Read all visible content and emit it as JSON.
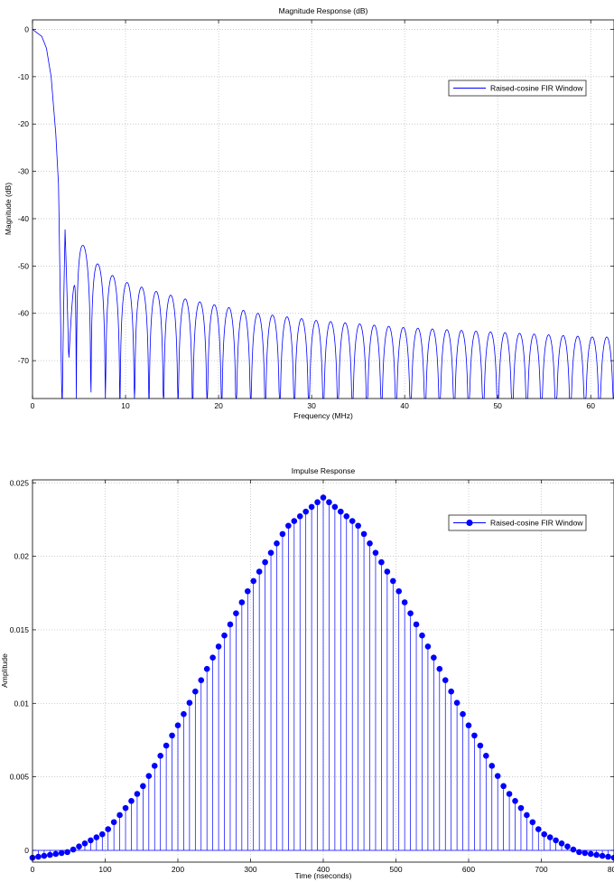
{
  "colors": {
    "series": "#0000ff",
    "background": "#ffffff",
    "grid": "#b8b8b8"
  },
  "chart_data": [
    {
      "type": "line",
      "title": "Magnitude Response (dB)",
      "xlabel": "Frequency (MHz)",
      "ylabel": "Magnitude (dB)",
      "xlim": [
        0,
        62.5
      ],
      "ylim": [
        -78,
        2
      ],
      "xticks": [
        0,
        10,
        20,
        30,
        40,
        50,
        60
      ],
      "yticks": [
        0,
        -10,
        -20,
        -30,
        -40,
        -50,
        -60,
        -70
      ],
      "grid": true,
      "legend": "top-right",
      "series": [
        {
          "name": "Raised-cosine FIR Window",
          "x": [
            0,
            1,
            1.5,
            2,
            2.5,
            2.8,
            3.1,
            3.5,
            3.9,
            4.6,
            5.4,
            6.2,
            7.0,
            7.8,
            8.6,
            10.2,
            12.6,
            16.5,
            20.4,
            24.3,
            30.5,
            40.0,
            50.1,
            60.2,
            62.5
          ],
          "y": [
            0,
            -1.5,
            -4,
            -10,
            -22,
            -33,
            -70,
            -38.5,
            -70,
            -42.5,
            -45.5,
            -47.5,
            -49.5,
            -51,
            -52,
            -53.5,
            -55,
            -57,
            -58.5,
            -60,
            -61.5,
            -63,
            -64,
            -65,
            -65
          ]
        }
      ]
    },
    {
      "type": "scatter",
      "title": "Impulse Response",
      "xlabel": "Time (nseconds)",
      "ylabel": "Amplitude",
      "xlim": [
        0,
        800
      ],
      "ylim": [
        -0.0008,
        0.0252
      ],
      "xticks": [
        0,
        100,
        200,
        300,
        400,
        500,
        600,
        700,
        800
      ],
      "yticks": [
        0,
        0.005,
        0.01,
        0.015,
        0.02,
        0.025
      ],
      "grid": true,
      "legend": "top-right",
      "series": [
        {
          "name": "Raised-cosine FIR Window",
          "x": [
            0,
            50,
            100,
            150,
            200,
            250,
            300,
            350,
            400,
            450,
            500,
            550,
            600,
            650,
            700,
            750,
            800
          ],
          "y": [
            -0.0005,
            -0.0001,
            0.0012,
            0.0042,
            0.0085,
            0.0133,
            0.018,
            0.022,
            0.024,
            0.022,
            0.018,
            0.0133,
            0.0085,
            0.0042,
            0.0012,
            -0.0001,
            -0.0005
          ]
        }
      ]
    }
  ]
}
